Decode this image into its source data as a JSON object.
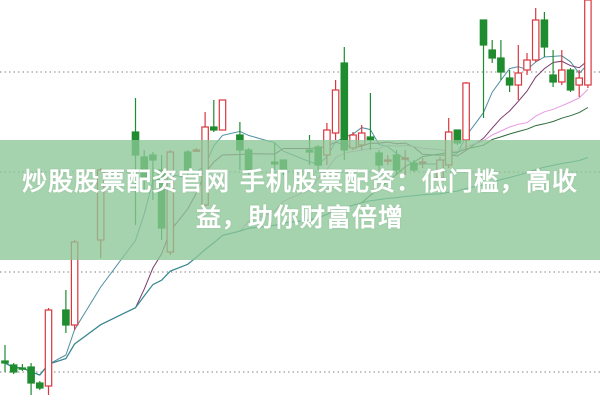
{
  "banner": {
    "line1": "炒股股票配资官网 手机股票配资：低门槛，高收",
    "line2": "益，助你财富倍增"
  },
  "colors": {
    "up": "#d9363e",
    "down": "#1f8c2f",
    "grid": "#9a9a9a",
    "banner": "#8cc696"
  },
  "chart_data": {
    "type": "candlestick",
    "title": "",
    "xlabel": "",
    "ylabel": "",
    "ylim": [
      10,
      50
    ],
    "grid": true,
    "grid_levels": [
      42.8,
      32.8,
      22.8,
      12.8
    ],
    "candle_fields": [
      "t",
      "open",
      "high",
      "low",
      "close"
    ],
    "candles": [
      [
        0,
        13.9,
        15.5,
        12.8,
        13.7
      ],
      [
        1,
        13.5,
        13.7,
        12.6,
        12.8
      ],
      [
        2,
        13.2,
        13.6,
        12.9,
        13.1
      ],
      [
        3,
        13.3,
        13.7,
        10.5,
        11.7
      ],
      [
        4,
        11.7,
        11.9,
        11.0,
        11.2
      ],
      [
        5,
        11.4,
        19.2,
        10.5,
        19.0
      ],
      [
        7,
        19.0,
        21.0,
        16.7,
        17.5
      ],
      [
        8,
        17.5,
        26.0,
        17.0,
        25.8
      ],
      [
        11,
        26.0,
        33.2,
        24.2,
        33.0
      ],
      [
        15,
        36.8,
        40.2,
        27.5,
        34.5
      ],
      [
        16,
        34.3,
        35.0,
        31.0,
        32.2
      ],
      [
        17,
        34.5,
        34.8,
        30.0,
        34.0
      ],
      [
        18,
        33.0,
        34.5,
        26.0,
        27.2
      ],
      [
        19,
        24.8,
        35.0,
        24.5,
        34.8
      ],
      [
        21,
        34.8,
        35.0,
        32.5,
        33.0
      ],
      [
        22,
        35.0,
        35.2,
        34.8,
        35.0
      ],
      [
        23,
        29.5,
        38.8,
        29.0,
        37.3
      ],
      [
        24,
        37.3,
        40.0,
        36.8,
        37.0
      ],
      [
        25,
        37.0,
        40.0,
        37.0,
        40.0
      ],
      [
        27,
        36.5,
        37.8,
        33.0,
        35.0
      ],
      [
        28,
        35.0,
        35.2,
        32.5,
        33.0
      ],
      [
        31,
        33.8,
        35.7,
        33.0,
        33.6
      ],
      [
        32,
        34.0,
        34.0,
        32.5,
        32.8
      ],
      [
        35,
        35.0,
        36.5,
        33.5,
        34.8
      ],
      [
        36,
        35.3,
        35.5,
        33.0,
        33.5
      ],
      [
        37,
        34.5,
        37.7,
        33.5,
        37.0
      ],
      [
        38,
        36.7,
        42.0,
        36.0,
        41.0
      ],
      [
        39,
        43.7,
        45.3,
        34.0,
        35.0
      ],
      [
        40,
        35.2,
        36.8,
        35.0,
        36.5
      ],
      [
        41,
        35.5,
        37.5,
        35.0,
        36.7
      ],
      [
        42,
        36.3,
        40.7,
        35.0,
        36.0
      ],
      [
        43,
        34.7,
        35.0,
        33.0,
        33.5
      ],
      [
        44,
        34.0,
        34.5,
        33.5,
        34.0
      ],
      [
        45,
        34.5,
        35.0,
        32.5,
        33.0
      ],
      [
        46,
        34.2,
        35.0,
        32.5,
        34.2
      ],
      [
        47,
        33.7,
        34.0,
        32.8,
        33.0
      ],
      [
        48,
        33.8,
        34.2,
        33.2,
        33.8
      ],
      [
        50,
        32.2,
        34.3,
        31.5,
        34.0
      ],
      [
        51,
        33.5,
        38.2,
        33.2,
        36.8
      ],
      [
        52,
        37.0,
        37.0,
        35.5,
        35.7
      ],
      [
        53,
        36.0,
        41.8,
        35.0,
        41.7
      ],
      [
        55,
        48.0,
        48.0,
        38.2,
        45.5
      ],
      [
        56,
        45.0,
        46.0,
        43.7,
        44.2
      ],
      [
        57,
        44.2,
        46.0,
        42.0,
        42.8
      ],
      [
        58,
        42.2,
        43.0,
        40.8,
        41.5
      ],
      [
        59,
        41.5,
        45.5,
        40.0,
        42.7
      ],
      [
        60,
        43.0,
        44.7,
        42.5,
        44.0
      ],
      [
        61,
        44.0,
        49.2,
        43.8,
        48.0
      ],
      [
        62,
        48.0,
        48.8,
        44.3,
        45.3
      ],
      [
        63,
        42.5,
        45.0,
        41.3,
        41.8
      ],
      [
        64,
        41.8,
        45.0,
        41.5,
        43.0
      ],
      [
        65,
        43.0,
        43.2,
        40.8,
        41.0
      ],
      [
        66,
        41.5,
        43.0,
        40.3,
        42.2
      ],
      [
        67,
        41.5,
        50.0,
        41.2,
        50.0
      ]
    ],
    "moving_averages": [
      {
        "period": 5,
        "color": "#4f8fa3"
      },
      {
        "period": 10,
        "color": "#7b3b6b"
      },
      {
        "period": 20,
        "color": "#e79ae0"
      },
      {
        "period": 30,
        "color": "#2f6b3a"
      },
      {
        "period": 60,
        "color": "#2f8f9c"
      }
    ]
  }
}
